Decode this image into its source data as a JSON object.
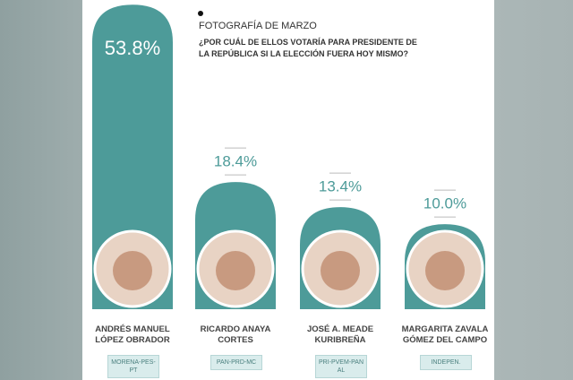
{
  "chart_data": {
    "type": "bar",
    "title": "FOTOGRAFÍA DE MARZO",
    "subtitle": "¿POR CUÁL DE ELLOS VOTARÍA PARA PRESIDENTE DE LA REPÚBLICA SI LA ELECCIÓN FUERA HOY MISMO?",
    "categories": [
      "ANDRÉS MANUEL LÓPEZ OBRADOR",
      "RICARDO ANAYA CORTES",
      "JOSÉ A. MEADE KURIBREÑA",
      "MARGARITA ZAVALA GÓMEZ DEL CAMPO"
    ],
    "parties": [
      "MORENA-PES-PT",
      "PAN-PRD-MC",
      "PRI-PVEM-PANAL",
      "INDEPEN."
    ],
    "values": [
      53.8,
      18.4,
      13.4,
      10.0
    ],
    "value_labels": [
      "53.8%",
      "18.4%",
      "13.4%",
      "10.0%"
    ],
    "color": "#4d9b99"
  }
}
